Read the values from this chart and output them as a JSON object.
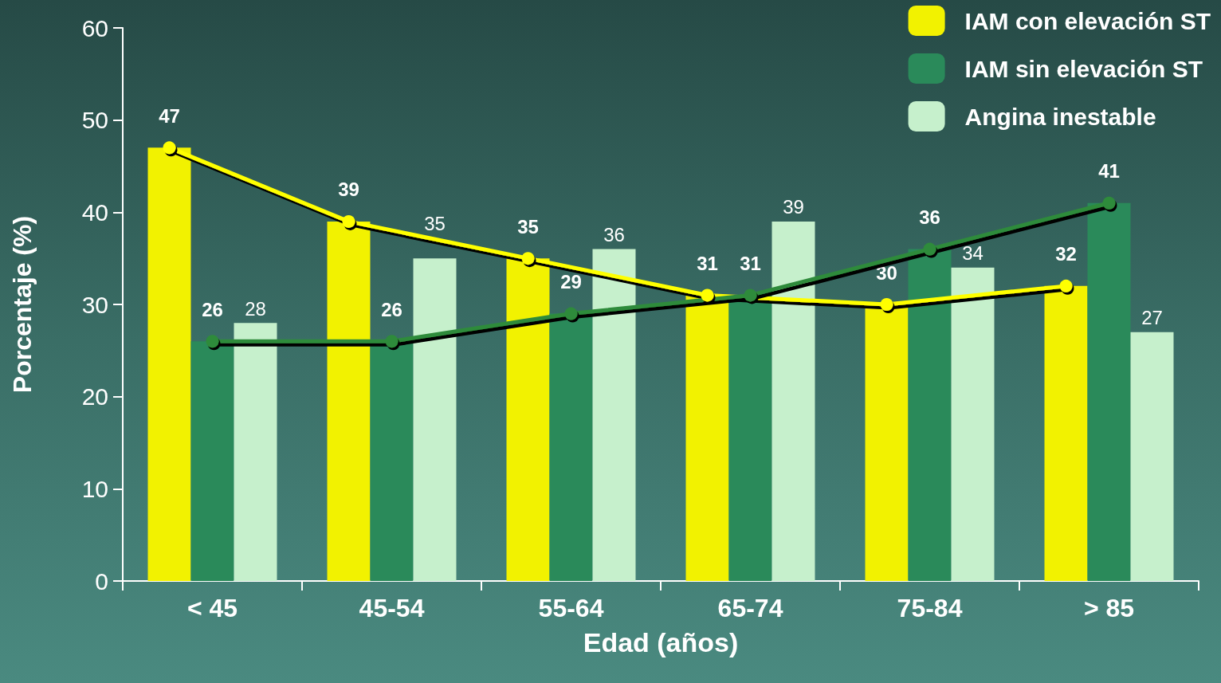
{
  "chart_data": {
    "type": "bar",
    "xlabel": "Edad (años)",
    "ylabel": "Porcentaje (%)",
    "categories": [
      "< 45",
      "45-54",
      "55-64",
      "65-74",
      "75-84",
      "> 85"
    ],
    "ylim": [
      0,
      60
    ],
    "yticks": [
      0,
      10,
      20,
      30,
      40,
      50,
      60
    ],
    "grid": false,
    "legend": "top right",
    "series": [
      {
        "name": "IAM con elevación ST",
        "color": "#f2f200",
        "values": [
          47,
          39,
          35,
          31,
          30,
          32
        ],
        "value_labels": [
          "47",
          "39",
          "35",
          "31",
          "30",
          "32"
        ]
      },
      {
        "name": "IAM sin elevación ST",
        "color": "#2a8a5a",
        "values": [
          26,
          26,
          29,
          31,
          36,
          41
        ],
        "value_labels": [
          "26",
          "26",
          "29",
          "31",
          "36",
          "41"
        ]
      },
      {
        "name": "Angina inestable",
        "color": "#c6f0cc",
        "values": [
          28,
          35,
          36,
          39,
          34,
          27
        ],
        "value_labels": [
          "28",
          "35",
          "36",
          "39",
          "34",
          "27"
        ]
      },
      {
        "type": "line",
        "color": "#ffff00",
        "marker": "circle",
        "values": [
          47,
          39,
          35,
          31,
          30,
          32
        ]
      },
      {
        "type": "line",
        "color": "#2e8b3a",
        "marker": "circle",
        "values": [
          26,
          26,
          29,
          31,
          36,
          41
        ]
      }
    ]
  }
}
